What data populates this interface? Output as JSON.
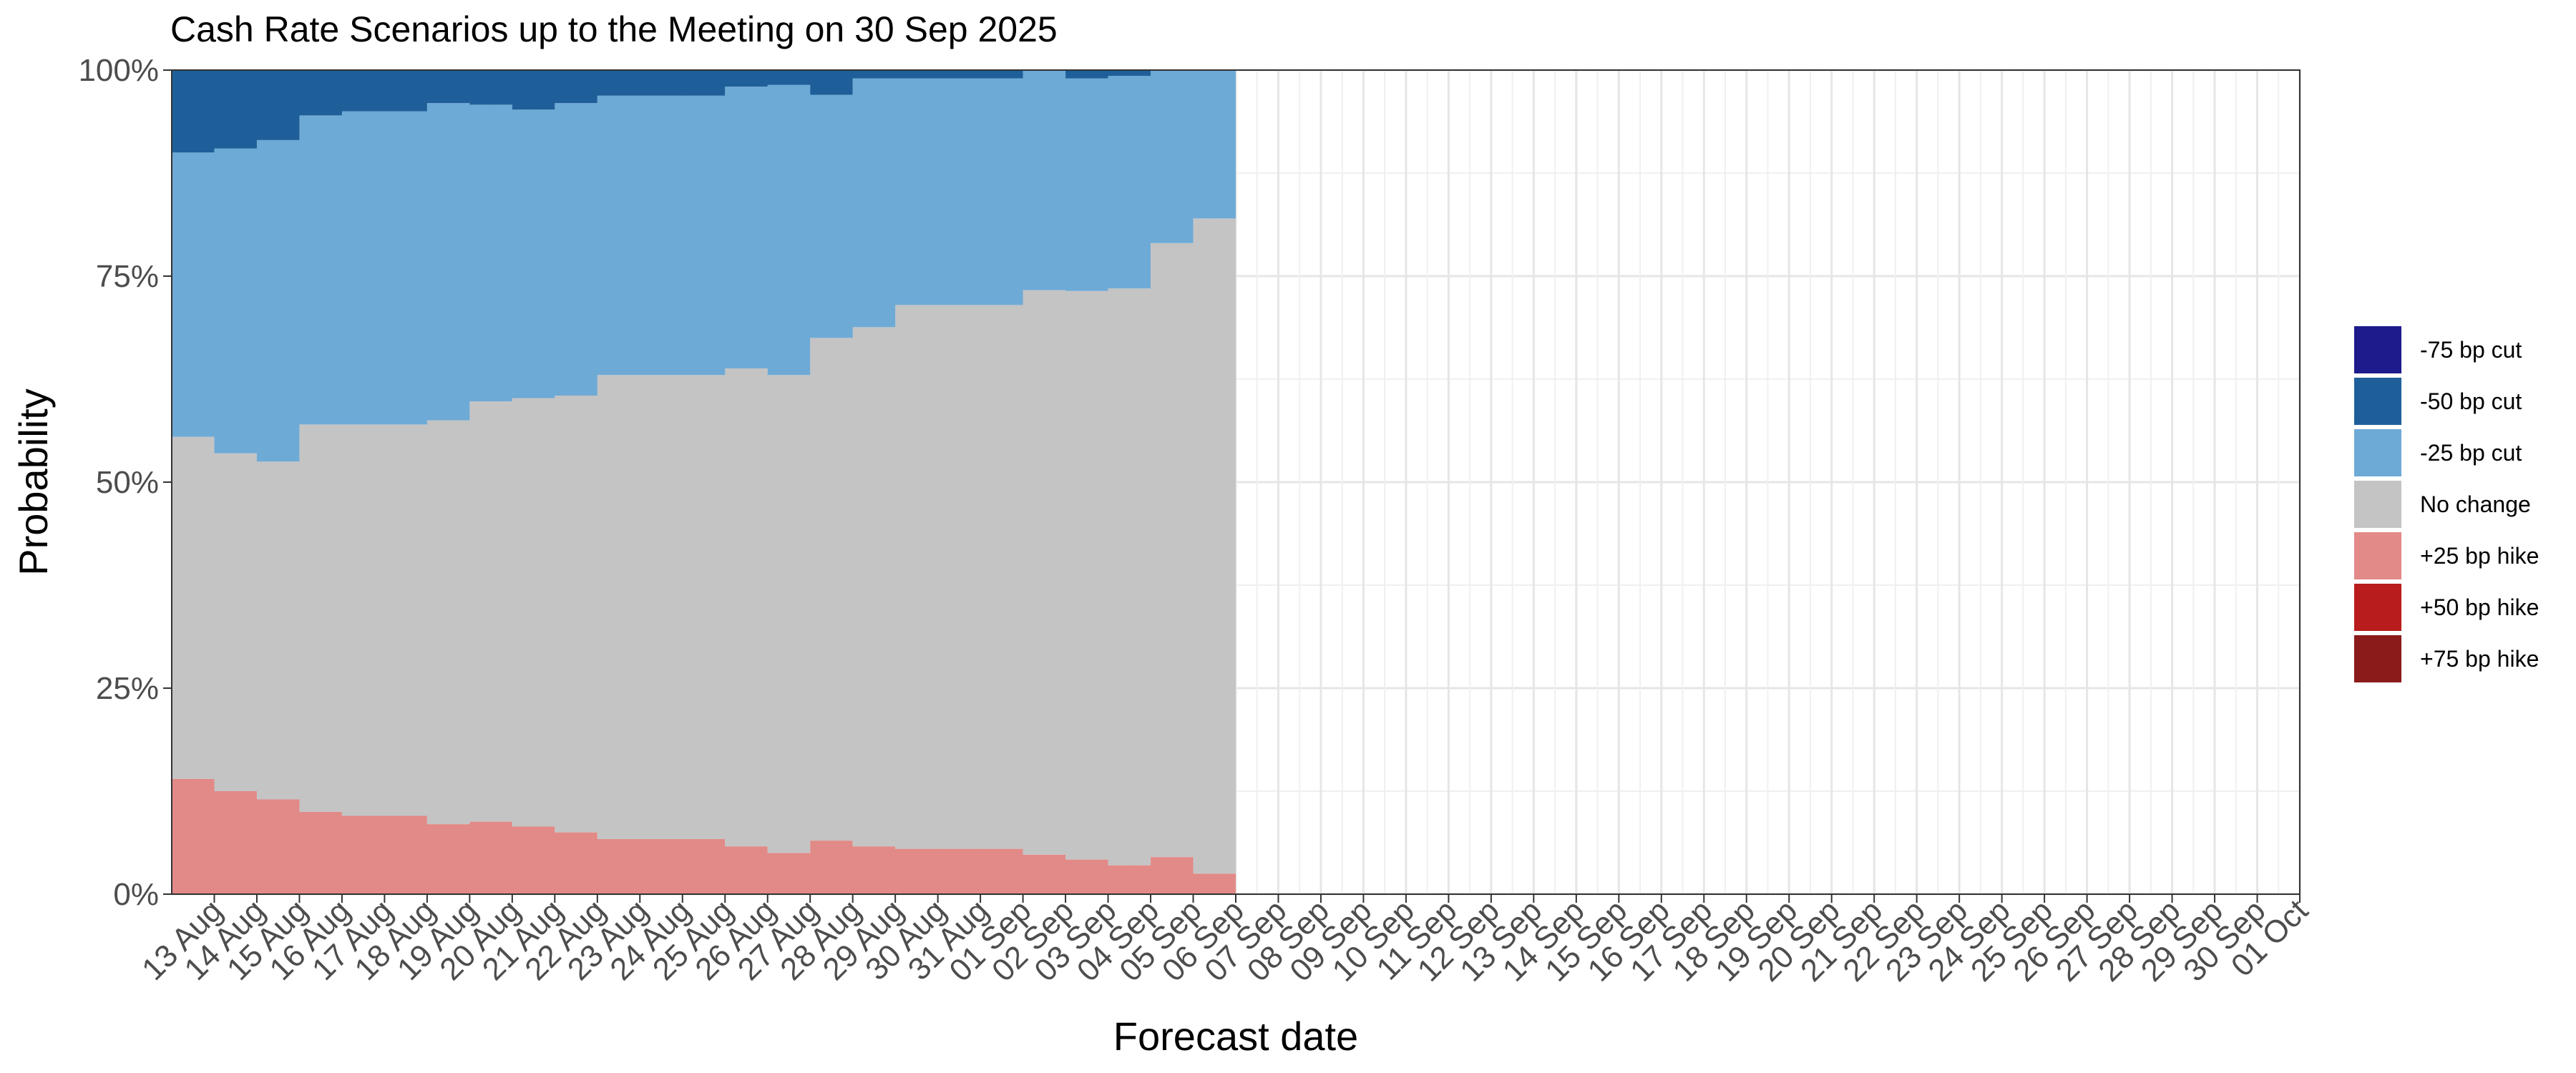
{
  "title": "Cash Rate Scenarios up to the Meeting on 30 Sep 2025",
  "chart_data": {
    "type": "area",
    "stacked": true,
    "title": "Cash Rate Scenarios up to the Meeting on 30 Sep 2025",
    "xlabel": "Forecast date",
    "ylabel": "Probability",
    "ylim": [
      0,
      1
    ],
    "xlim": [
      "2025-08-12",
      "2025-10-01"
    ],
    "y_ticks": [
      "0%",
      "25%",
      "50%",
      "75%",
      "100%"
    ],
    "x_tick_labels": [
      "13 Aug",
      "14 Aug",
      "15 Aug",
      "16 Aug",
      "17 Aug",
      "18 Aug",
      "19 Aug",
      "20 Aug",
      "21 Aug",
      "22 Aug",
      "23 Aug",
      "24 Aug",
      "25 Aug",
      "26 Aug",
      "27 Aug",
      "28 Aug",
      "29 Aug",
      "30 Aug",
      "31 Aug",
      "01 Sep",
      "02 Sep",
      "03 Sep",
      "04 Sep",
      "05 Sep",
      "06 Sep",
      "07 Sep",
      "08 Sep",
      "09 Sep",
      "10 Sep",
      "11 Sep",
      "12 Sep",
      "13 Sep",
      "14 Sep",
      "15 Sep",
      "16 Sep",
      "17 Sep",
      "18 Sep",
      "19 Sep",
      "20 Sep",
      "21 Sep",
      "22 Sep",
      "23 Sep",
      "24 Sep",
      "25 Sep",
      "26 Sep",
      "27 Sep",
      "28 Sep",
      "29 Sep",
      "30 Sep",
      "01 Oct"
    ],
    "grid": true,
    "legend_position": "right",
    "x": [
      "2025-08-12",
      "2025-08-13",
      "2025-08-14",
      "2025-08-15",
      "2025-08-16",
      "2025-08-18",
      "2025-08-19",
      "2025-08-20",
      "2025-08-21",
      "2025-08-22",
      "2025-08-25",
      "2025-08-26",
      "2025-08-27",
      "2025-08-28",
      "2025-08-29",
      "2025-09-01",
      "2025-09-02",
      "2025-09-03",
      "2025-09-04",
      "2025-09-05"
    ],
    "series": [
      {
        "name": "+75 bp hike",
        "color": "#8b1a1a",
        "values": [
          0,
          0,
          0,
          0,
          0,
          0,
          0,
          0,
          0,
          0,
          0,
          0,
          0,
          0,
          0,
          0,
          0,
          0,
          0,
          0
        ]
      },
      {
        "name": "+50 bp hike",
        "color": "#b81c1c",
        "values": [
          0,
          0,
          0,
          0,
          0,
          0,
          0,
          0,
          0,
          0,
          0,
          0,
          0,
          0,
          0,
          0,
          0,
          0,
          0,
          0
        ]
      },
      {
        "name": "+25 bp hike",
        "color": "#e28a87",
        "values": [
          0.14,
          0.125,
          0.115,
          0.1,
          0.095,
          0.085,
          0.088,
          0.082,
          0.075,
          0.067,
          0.058,
          0.05,
          0.065,
          0.058,
          0.055,
          0.048,
          0.042,
          0.035,
          0.045,
          0.025
        ]
      },
      {
        "name": "No change",
        "color": "#c4c4c4",
        "values": [
          0.415,
          0.41,
          0.41,
          0.47,
          0.475,
          0.49,
          0.51,
          0.52,
          0.53,
          0.563,
          0.58,
          0.58,
          0.61,
          0.63,
          0.66,
          0.685,
          0.69,
          0.7,
          0.745,
          0.795
        ]
      },
      {
        "name": "-25 bp cut",
        "color": "#6eaad6",
        "values": [
          0.345,
          0.37,
          0.39,
          0.375,
          0.38,
          0.385,
          0.36,
          0.35,
          0.355,
          0.339,
          0.342,
          0.352,
          0.295,
          0.302,
          0.275,
          0.267,
          0.258,
          0.258,
          0.21,
          0.18
        ]
      },
      {
        "name": "-50 bp cut",
        "color": "#1f5f99",
        "values": [
          0.1,
          0.095,
          0.085,
          0.055,
          0.05,
          0.04,
          0.042,
          0.048,
          0.04,
          0.031,
          0.02,
          0.018,
          0.03,
          0.01,
          0.01,
          0,
          0.01,
          0.007,
          0,
          0
        ]
      },
      {
        "name": "-75 bp cut",
        "color": "#1e1b8c",
        "values": [
          0,
          0,
          0,
          0,
          0,
          0,
          0,
          0,
          0,
          0,
          0,
          0,
          0,
          0,
          0,
          0,
          0,
          0,
          0,
          0
        ]
      }
    ],
    "legend": [
      "-75 bp cut",
      "-50 bp cut",
      "-25 bp cut",
      "No change",
      "+25 bp hike",
      "+50 bp hike",
      "+75 bp hike"
    ]
  }
}
